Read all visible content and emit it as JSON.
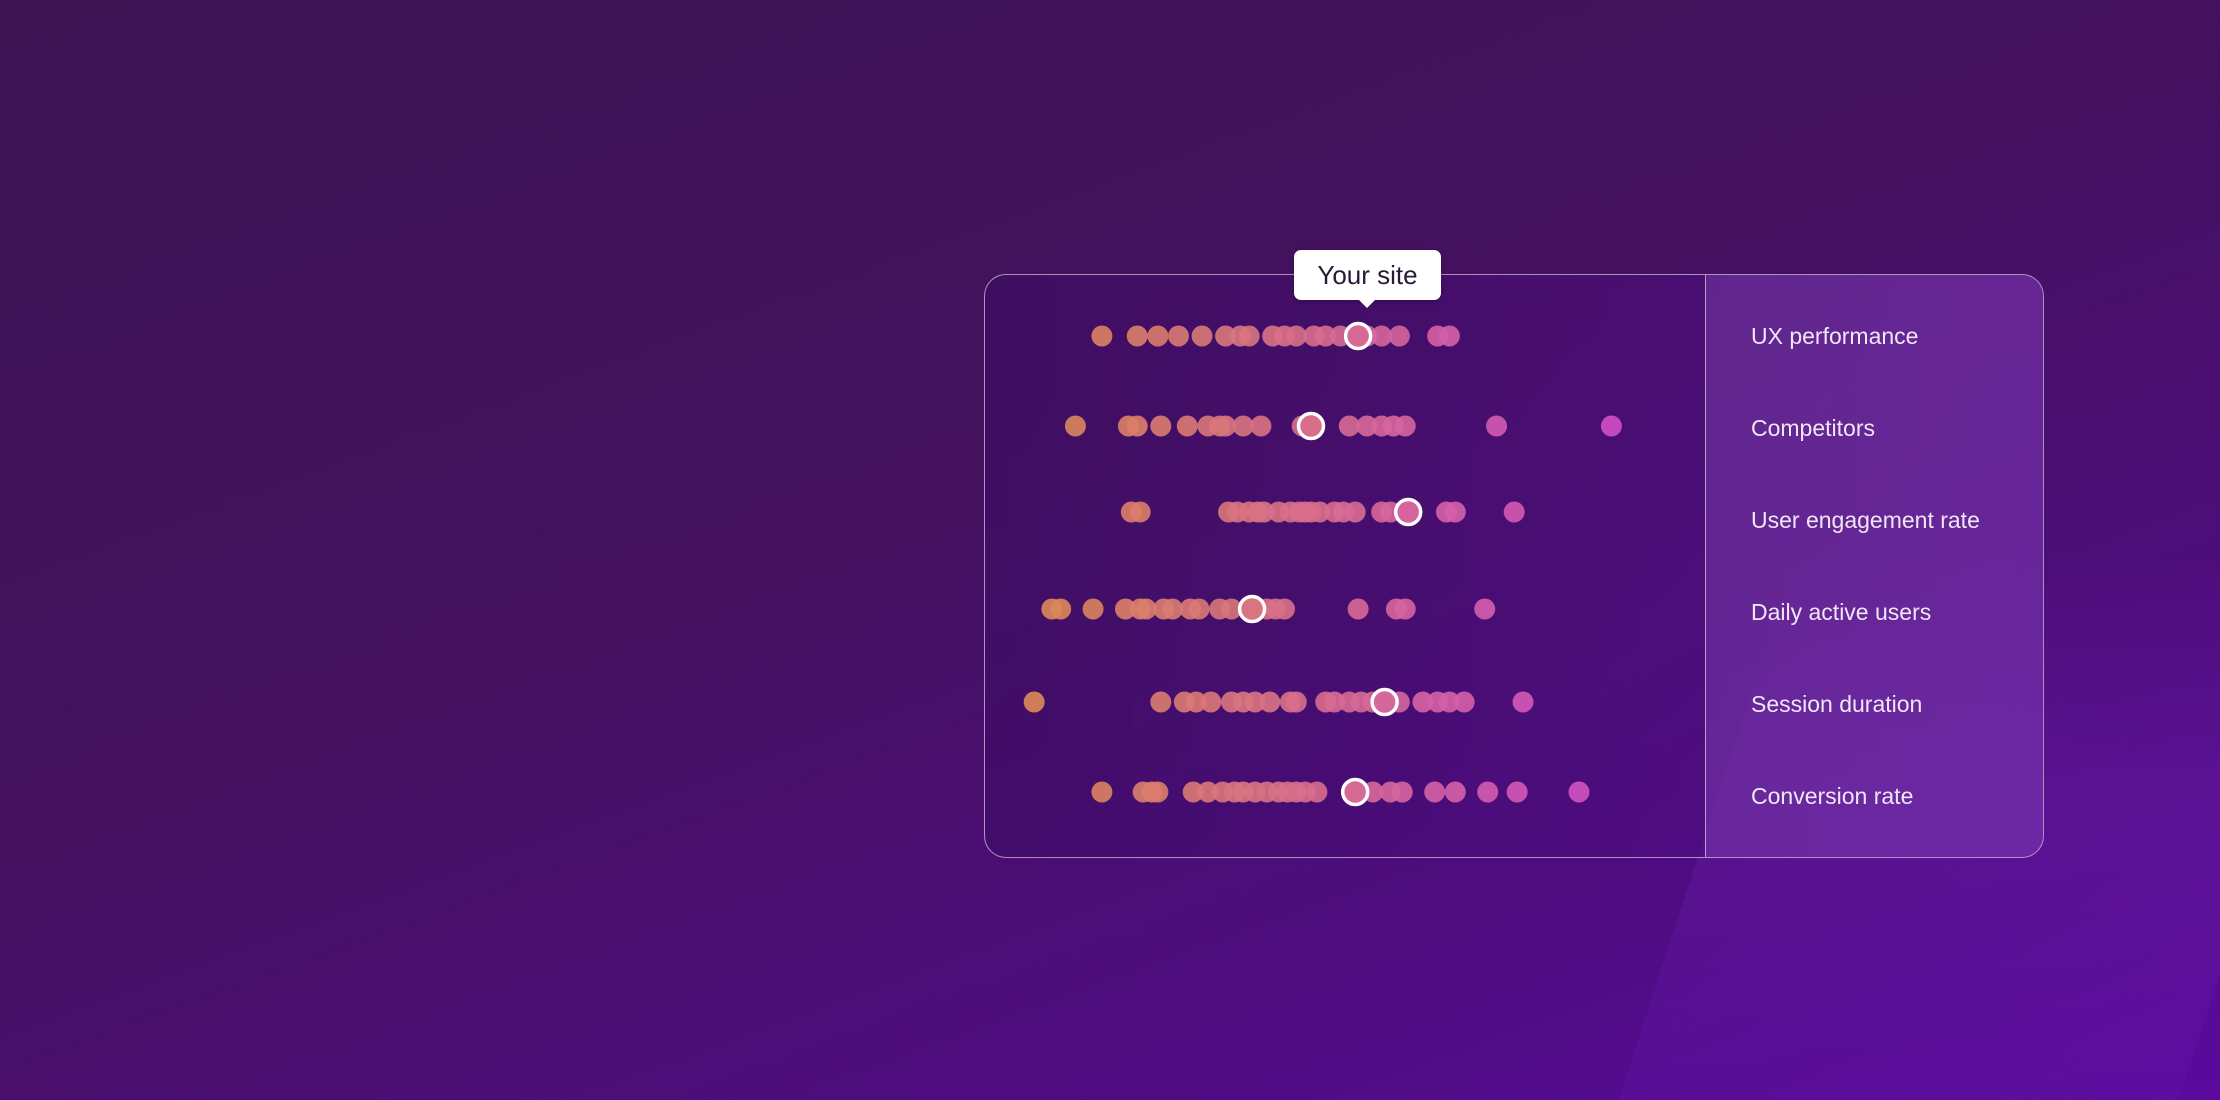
{
  "tooltip": {
    "label": "Your site"
  },
  "colors": {
    "start": "#dd8a55",
    "end": "#d24fc9",
    "highlight_stroke": "#ffffff",
    "guide_line": "#ffffff"
  },
  "chart_data": {
    "type": "scatter",
    "title": "",
    "xlabel": "",
    "ylabel": "",
    "xlim": [
      0,
      100
    ],
    "grid": false,
    "categories": [
      "UX performance",
      "Competitors",
      "User engagement rate",
      "Daily active users",
      "Session duration",
      "Conversion rate"
    ],
    "series": [
      {
        "values": [
          10,
          16,
          19.5,
          23,
          27,
          31,
          33.5,
          35,
          39,
          41,
          43,
          46,
          48,
          50.5,
          55,
          57.5,
          60.5,
          67,
          69
        ],
        "highlight": 53.5
      },
      {
        "values": [
          5.5,
          14.5,
          16,
          20,
          24.5,
          28,
          30,
          31,
          34,
          37,
          44,
          46,
          52,
          55,
          57.5,
          59.5,
          61.5,
          77,
          96.5
        ],
        "highlight": 45.5
      },
      {
        "values": [
          15,
          16.5,
          31.5,
          33,
          35,
          36.5,
          37.5,
          40,
          42,
          43.5,
          44.5,
          45.5,
          47,
          49.5,
          51,
          53,
          57.5,
          59,
          68.5,
          70,
          80
        ],
        "highlight": 62
      },
      {
        "values": [
          1.5,
          3,
          8.5,
          14,
          16.5,
          17.5,
          20.5,
          22,
          25,
          26.5,
          30,
          32,
          36,
          38,
          39.5,
          41,
          53.5,
          60,
          61.5,
          75
        ],
        "highlight": 35.5
      },
      {
        "values": [
          -1.5,
          20,
          24,
          26,
          28.5,
          32,
          34,
          36,
          38.5,
          42,
          43,
          48,
          49.5,
          52,
          54,
          56,
          60.5,
          64.5,
          67,
          69,
          71.5,
          81.5
        ],
        "highlight": 58
      },
      {
        "values": [
          10,
          17,
          18.5,
          19.5,
          25.5,
          28,
          30.5,
          32.5,
          34,
          36,
          38,
          40,
          41.5,
          43,
          44.5,
          46.5,
          56,
          59,
          61,
          66.5,
          70,
          75.5,
          80.5,
          91
        ],
        "highlight": 53
      }
    ]
  }
}
